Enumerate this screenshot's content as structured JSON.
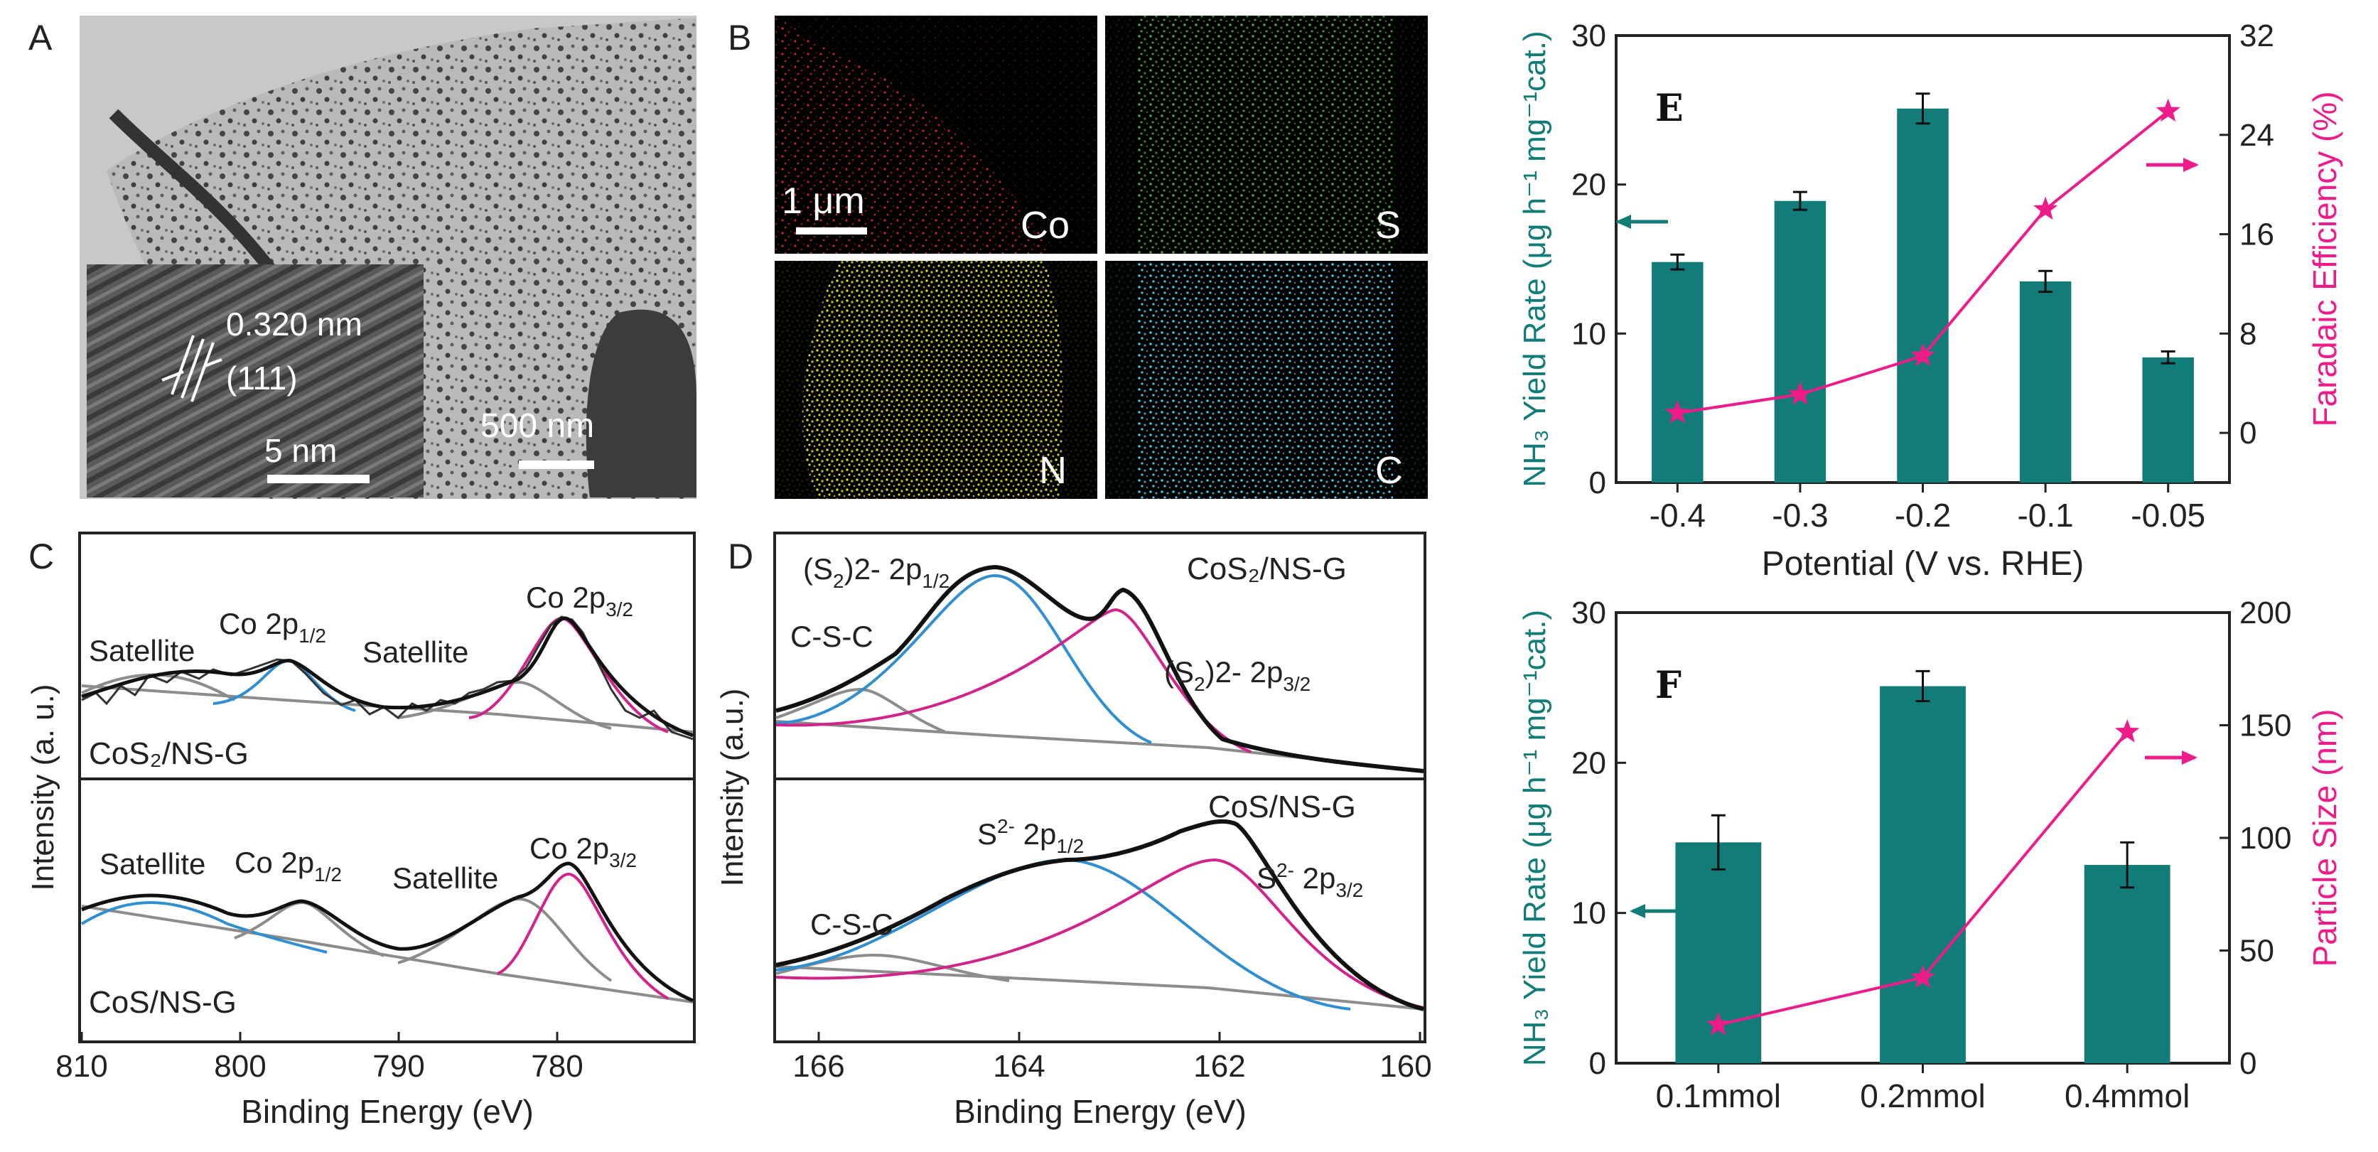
{
  "colors": {
    "teal": "#117c78",
    "magenta": "#ee1b8b",
    "xps_black": "#111111",
    "xps_gray": "#8c8c8c",
    "xps_blue": "#2f8fd0",
    "xps_magenta": "#d2238c",
    "eds_co": "#c8202a",
    "eds_s": "#3fae2a",
    "eds_n": "#d8d030",
    "eds_c": "#40c8dc"
  },
  "panel_a": {
    "label": "A",
    "inset_spacing": "0.320 nm",
    "inset_plane": "(111)",
    "inset_scale": "5 nm",
    "main_scale": "500 nm"
  },
  "panel_b": {
    "label": "B",
    "scale": "1 μm",
    "maps": [
      {
        "element": "Co",
        "color": "#c8202a"
      },
      {
        "element": "S",
        "color": "#3fae2a"
      },
      {
        "element": "N",
        "color": "#d8d030"
      },
      {
        "element": "C",
        "color": "#40c8dc"
      }
    ]
  },
  "panel_c": {
    "label": "C",
    "ylabel": "Intensity (a. u.)",
    "xlabel": "Binding Energy (eV)",
    "xticks": [
      "810",
      "800",
      "790",
      "780"
    ],
    "top": {
      "sample": "CoS₂/NS-G",
      "peaks": [
        "Satellite",
        "Co 2p",
        "1/2",
        "Satellite",
        "Co 2p",
        "3/2"
      ]
    },
    "bottom": {
      "sample": "CoS/NS-G",
      "peaks": [
        "Satellite",
        "Co 2p",
        "1/2",
        "Satellite",
        "Co 2p",
        "3/2"
      ]
    }
  },
  "panel_d": {
    "label": "D",
    "ylabel": "Intensity (a.u.)",
    "xlabel": "Binding Energy (eV)",
    "xticks": [
      "166",
      "164",
      "162",
      "160"
    ],
    "top": {
      "sample": "CoS₂/NS-G",
      "peak_csc": "C-S-C",
      "peak_a_base": "(S",
      "peak_a_sub": "2",
      "peak_a_sup": ")2-",
      "peak_a_orb": " 2p",
      "peak_a_orb_sub": "1/2",
      "peak_b_base": "(S",
      "peak_b_sub": "2",
      "peak_b_sup": ")2-",
      "peak_b_orb": " 2p",
      "peak_b_orb_sub": "3/2"
    },
    "bottom": {
      "sample": "CoS/NS-G",
      "peak_csc": "C-S-C",
      "peak_a_base": "S",
      "peak_a_sup": "2-",
      "peak_a_orb": " 2p",
      "peak_a_orb_sub": "1/2",
      "peak_b_base": "S",
      "peak_b_sup": "2-",
      "peak_b_orb": " 2p",
      "peak_b_orb_sub": "3/2"
    }
  },
  "chart_data": [
    {
      "panel": "E",
      "type": "bar",
      "title": "E",
      "categories": [
        "-0.4",
        "-0.3",
        "-0.2",
        "-0.1",
        "-0.05"
      ],
      "xlabel": "Potential (V vs. RHE)",
      "ylabel": "NH₃ Yield Rate (μg h⁻¹ mg⁻¹cat.)",
      "ylim": [
        0,
        30
      ],
      "yticks": [
        "0",
        "10",
        "20",
        "30"
      ],
      "y2label": "Faradaic Efficiency (%)",
      "y2lim": [
        -4,
        32
      ],
      "y2ticks": [
        "0",
        "8",
        "16",
        "24",
        "32"
      ],
      "series": [
        {
          "name": "NH₃ Yield Rate",
          "kind": "bar",
          "axis": "left",
          "values": [
            14.8,
            18.9,
            25.1,
            13.5,
            8.4
          ],
          "errors": [
            0.5,
            0.6,
            1.0,
            0.7,
            0.4
          ]
        },
        {
          "name": "Faradaic Efficiency",
          "kind": "line",
          "axis": "right",
          "values": [
            1.6,
            3.1,
            6.2,
            18.0,
            25.9
          ]
        }
      ]
    },
    {
      "panel": "F",
      "type": "bar",
      "title": "F",
      "categories": [
        "0.1mmol",
        "0.2mmol",
        "0.4mmol"
      ],
      "xlabel": "",
      "ylabel": "NH₃ Yield Rate (μg h⁻¹ mg⁻¹cat.)",
      "ylim": [
        0,
        30
      ],
      "yticks": [
        "0",
        "10",
        "20",
        "30"
      ],
      "y2label": "Particle Size (nm)",
      "y2lim": [
        0,
        200
      ],
      "y2ticks": [
        "0",
        "50",
        "100",
        "150",
        "200"
      ],
      "series": [
        {
          "name": "NH₃ Yield Rate",
          "kind": "bar",
          "axis": "left",
          "values": [
            14.7,
            25.1,
            13.2
          ],
          "errors": [
            1.8,
            1.0,
            1.5
          ]
        },
        {
          "name": "Particle Size",
          "kind": "line",
          "axis": "right",
          "values": [
            17,
            38,
            147
          ]
        }
      ]
    }
  ]
}
